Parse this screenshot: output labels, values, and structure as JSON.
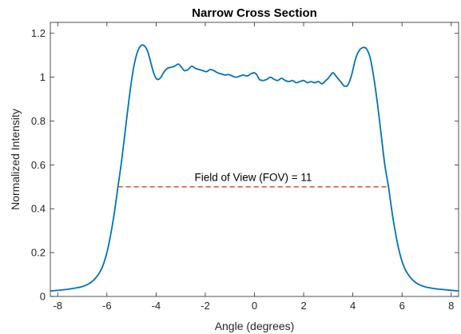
{
  "chart_data": {
    "type": "line",
    "title": "Narrow Cross Section",
    "xlabel": "Angle (degrees)",
    "ylabel": "Normalized Intensity",
    "xlim": [
      -8.3,
      8.3
    ],
    "ylim": [
      0,
      1.25
    ],
    "xticks": [
      -8,
      -6,
      -4,
      -2,
      0,
      2,
      4,
      6,
      8
    ],
    "yticks": [
      0,
      0.2,
      0.4,
      0.6,
      0.8,
      1,
      1.2
    ],
    "grid": false,
    "box": true,
    "series": [
      {
        "color": "#0072BD",
        "points": [
          [
            -8.3,
            0.025
          ],
          [
            -7.8,
            0.03
          ],
          [
            -7.4,
            0.036
          ],
          [
            -7.0,
            0.045
          ],
          [
            -6.7,
            0.06
          ],
          [
            -6.45,
            0.085
          ],
          [
            -6.2,
            0.13
          ],
          [
            -6.0,
            0.2
          ],
          [
            -5.85,
            0.28
          ],
          [
            -5.7,
            0.38
          ],
          [
            -5.55,
            0.5
          ],
          [
            -5.4,
            0.62
          ],
          [
            -5.25,
            0.76
          ],
          [
            -5.1,
            0.9
          ],
          [
            -4.95,
            1.02
          ],
          [
            -4.8,
            1.1
          ],
          [
            -4.65,
            1.14
          ],
          [
            -4.5,
            1.145
          ],
          [
            -4.35,
            1.12
          ],
          [
            -4.2,
            1.06
          ],
          [
            -4.1,
            1.02
          ],
          [
            -4.0,
            0.995
          ],
          [
            -3.9,
            0.99
          ],
          [
            -3.8,
            1.0
          ],
          [
            -3.7,
            1.02
          ],
          [
            -3.55,
            1.04
          ],
          [
            -3.4,
            1.045
          ],
          [
            -3.25,
            1.05
          ],
          [
            -3.1,
            1.06
          ],
          [
            -3.0,
            1.05
          ],
          [
            -2.85,
            1.03
          ],
          [
            -2.7,
            1.035
          ],
          [
            -2.55,
            1.05
          ],
          [
            -2.4,
            1.04
          ],
          [
            -2.25,
            1.035
          ],
          [
            -2.1,
            1.03
          ],
          [
            -1.95,
            1.025
          ],
          [
            -1.8,
            1.035
          ],
          [
            -1.65,
            1.03
          ],
          [
            -1.5,
            1.02
          ],
          [
            -1.35,
            1.015
          ],
          [
            -1.2,
            1.01
          ],
          [
            -1.05,
            1.012
          ],
          [
            -0.9,
            1.005
          ],
          [
            -0.75,
            1.0
          ],
          [
            -0.6,
            1.005
          ],
          [
            -0.45,
            1.01
          ],
          [
            -0.3,
            1.005
          ],
          [
            -0.15,
            1.015
          ],
          [
            0.0,
            1.02
          ],
          [
            0.1,
            1.01
          ],
          [
            0.2,
            0.99
          ],
          [
            0.35,
            0.985
          ],
          [
            0.5,
            0.99
          ],
          [
            0.65,
            1.0
          ],
          [
            0.8,
            0.99
          ],
          [
            0.95,
            0.985
          ],
          [
            1.1,
            0.995
          ],
          [
            1.25,
            0.985
          ],
          [
            1.4,
            0.98
          ],
          [
            1.55,
            0.985
          ],
          [
            1.7,
            0.975
          ],
          [
            1.85,
            0.98
          ],
          [
            2.0,
            0.985
          ],
          [
            2.15,
            0.975
          ],
          [
            2.3,
            0.98
          ],
          [
            2.45,
            0.975
          ],
          [
            2.6,
            0.98
          ],
          [
            2.75,
            0.97
          ],
          [
            2.9,
            0.985
          ],
          [
            3.0,
            0.995
          ],
          [
            3.1,
            1.01
          ],
          [
            3.2,
            1.02
          ],
          [
            3.35,
            1.0
          ],
          [
            3.5,
            0.98
          ],
          [
            3.65,
            0.96
          ],
          [
            3.8,
            0.965
          ],
          [
            3.95,
            1.01
          ],
          [
            4.1,
            1.08
          ],
          [
            4.25,
            1.12
          ],
          [
            4.4,
            1.135
          ],
          [
            4.55,
            1.13
          ],
          [
            4.7,
            1.09
          ],
          [
            4.85,
            1.0
          ],
          [
            5.0,
            0.88
          ],
          [
            5.15,
            0.74
          ],
          [
            5.3,
            0.6
          ],
          [
            5.45,
            0.5
          ],
          [
            5.6,
            0.38
          ],
          [
            5.75,
            0.28
          ],
          [
            5.9,
            0.2
          ],
          [
            6.1,
            0.13
          ],
          [
            6.35,
            0.085
          ],
          [
            6.6,
            0.06
          ],
          [
            6.9,
            0.045
          ],
          [
            7.3,
            0.036
          ],
          [
            7.8,
            0.03
          ],
          [
            8.3,
            0.025
          ]
        ]
      }
    ],
    "reference_line": {
      "x": [
        -5.55,
        5.45
      ],
      "y": 0.5,
      "color": "#D95319",
      "style": "dashed"
    },
    "annotation": {
      "text": "Field of View (FOV) = 11",
      "x": -0.05,
      "y": 0.52
    }
  }
}
